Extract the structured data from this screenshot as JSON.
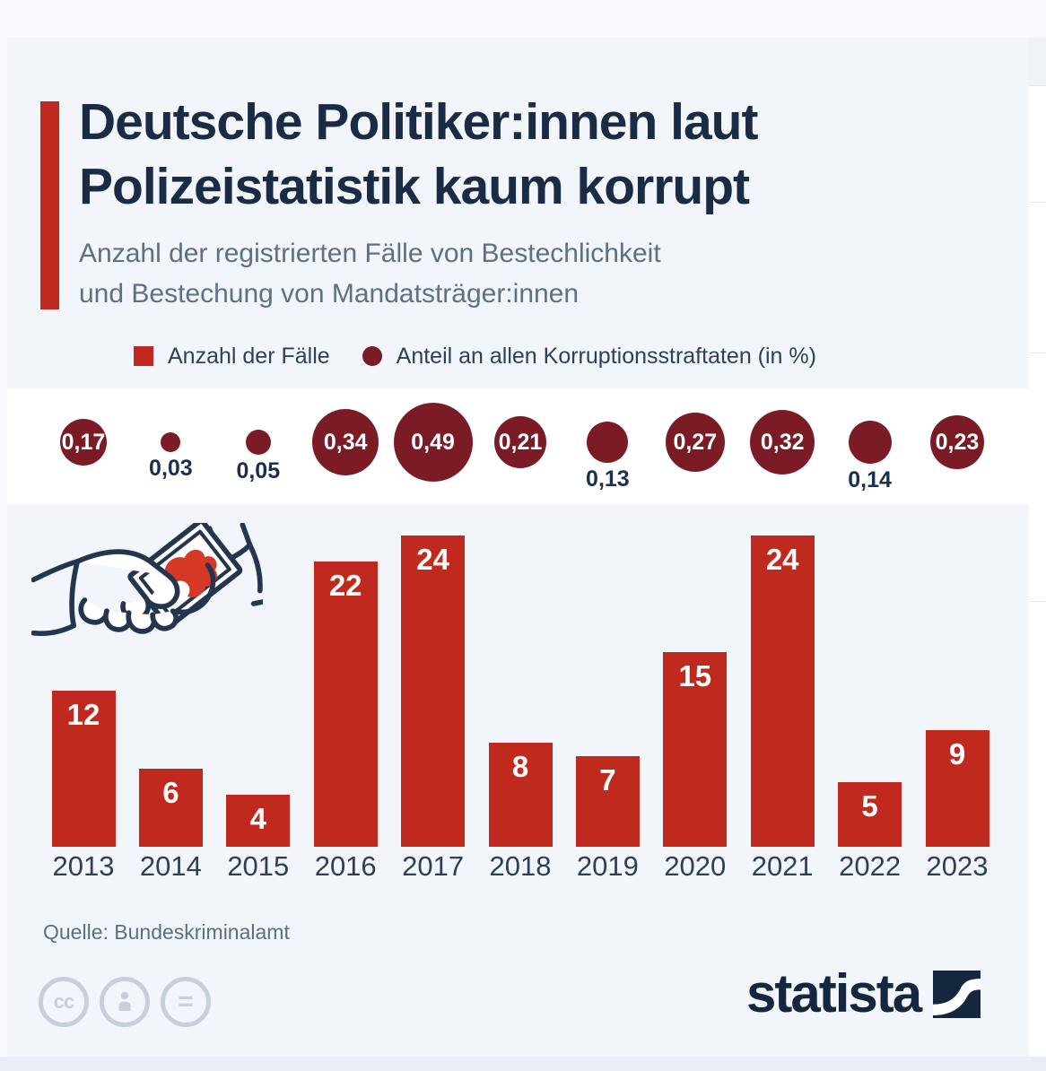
{
  "header": {
    "title_line1": "Deutsche Politiker:innen laut",
    "title_line2": "Polizeistatistik kaum korrupt",
    "subtitle_line1": "Anzahl der registrierten Fälle von Bestechlichkeit",
    "subtitle_line2": "und Bestechung von Mandatsträger:innen"
  },
  "legend": {
    "cases": "Anzahl der Fälle",
    "share": "Anteil an allen Korruptionsstraftaten (in %)"
  },
  "footer": {
    "source": "Quelle: Bundeskriminalamt",
    "brand": "statista",
    "license_badges": [
      "cc",
      "attribution-person",
      "no-derivatives-equals"
    ]
  },
  "colors": {
    "bar_red": "#c02a1e",
    "bubble_maroon": "#7b1b26",
    "title_navy": "#1a2b45",
    "subtitle_gray": "#5d7085",
    "text_navy": "#2e4058",
    "source_gray": "#5c6e80",
    "card_bg": "#f2f5f9",
    "band_white": "#ffffff",
    "brand_navy": "#15263f",
    "money_red": "#d63826",
    "icon_outline": "#24354f",
    "cc_gray": "#c7cfd9"
  },
  "chart_data": {
    "type": "bar",
    "title": "Deutsche Politiker:innen laut Polizeistatistik kaum korrupt",
    "subtitle": "Anzahl der registrierten Fälle von Bestechlichkeit und Bestechung von Mandatsträger:innen",
    "categories": [
      "2013",
      "2014",
      "2015",
      "2016",
      "2017",
      "2018",
      "2019",
      "2020",
      "2021",
      "2022",
      "2023"
    ],
    "series": [
      {
        "name": "Anzahl der Fälle",
        "type": "bar",
        "values": [
          12,
          6,
          4,
          22,
          24,
          8,
          7,
          15,
          24,
          5,
          9
        ]
      },
      {
        "name": "Anteil an allen Korruptionsstraftaten (in %)",
        "type": "bubble",
        "values": [
          0.17,
          0.03,
          0.05,
          0.34,
          0.49,
          0.21,
          0.13,
          0.27,
          0.32,
          0.14,
          0.23
        ],
        "labels": [
          "0,17",
          "0,03",
          "0,05",
          "0,34",
          "0,49",
          "0,21",
          "0,13",
          "0,27",
          "0,32",
          "0,14",
          "0,23"
        ],
        "label_placement": [
          "inside",
          "below",
          "below",
          "inside",
          "inside",
          "inside",
          "below",
          "inside",
          "inside",
          "below",
          "inside"
        ]
      }
    ],
    "ylim": [
      0,
      24
    ],
    "grid": false,
    "value_labels": "on",
    "legend_position": "top",
    "xlabel": "",
    "ylabel": ""
  }
}
